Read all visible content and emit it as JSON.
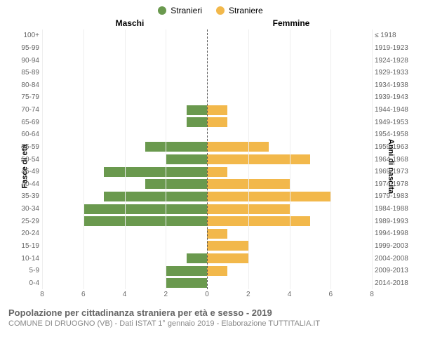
{
  "chart": {
    "type": "population-pyramid",
    "legend": [
      {
        "label": "Stranieri",
        "color": "#6a994e"
      },
      {
        "label": "Straniere",
        "color": "#f2b84b"
      }
    ],
    "column_headers": {
      "left": "Maschi",
      "right": "Femmine"
    },
    "yaxis_left_label": "Fasce di età",
    "yaxis_right_label": "Anni di nascita",
    "xmax": 8,
    "xtick_step": 2,
    "bar_height_ratio": 0.8,
    "left_color": "#6a994e",
    "right_color": "#f2b84b",
    "background_color": "#ffffff",
    "grid_color": "#eeeeee",
    "center_line_color": "#555555",
    "label_fontsize": 10,
    "legend_fontsize": 12,
    "rows": [
      {
        "age": "100+",
        "years": "≤ 1918",
        "m": 0,
        "f": 0
      },
      {
        "age": "95-99",
        "years": "1919-1923",
        "m": 0,
        "f": 0
      },
      {
        "age": "90-94",
        "years": "1924-1928",
        "m": 0,
        "f": 0
      },
      {
        "age": "85-89",
        "years": "1929-1933",
        "m": 0,
        "f": 0
      },
      {
        "age": "80-84",
        "years": "1934-1938",
        "m": 0,
        "f": 0
      },
      {
        "age": "75-79",
        "years": "1939-1943",
        "m": 0,
        "f": 0
      },
      {
        "age": "70-74",
        "years": "1944-1948",
        "m": 1,
        "f": 1
      },
      {
        "age": "65-69",
        "years": "1949-1953",
        "m": 1,
        "f": 1
      },
      {
        "age": "60-64",
        "years": "1954-1958",
        "m": 0,
        "f": 0
      },
      {
        "age": "55-59",
        "years": "1959-1963",
        "m": 3,
        "f": 3
      },
      {
        "age": "50-54",
        "years": "1964-1968",
        "m": 2,
        "f": 5
      },
      {
        "age": "45-49",
        "years": "1969-1973",
        "m": 5,
        "f": 1
      },
      {
        "age": "40-44",
        "years": "1974-1978",
        "m": 3,
        "f": 4
      },
      {
        "age": "35-39",
        "years": "1979-1983",
        "m": 5,
        "f": 6
      },
      {
        "age": "30-34",
        "years": "1984-1988",
        "m": 6,
        "f": 4
      },
      {
        "age": "25-29",
        "years": "1989-1993",
        "m": 6,
        "f": 5
      },
      {
        "age": "20-24",
        "years": "1994-1998",
        "m": 0,
        "f": 1
      },
      {
        "age": "15-19",
        "years": "1999-2003",
        "m": 0,
        "f": 2
      },
      {
        "age": "10-14",
        "years": "2004-2008",
        "m": 1,
        "f": 2
      },
      {
        "age": "5-9",
        "years": "2009-2013",
        "m": 2,
        "f": 1
      },
      {
        "age": "0-4",
        "years": "2014-2018",
        "m": 2,
        "f": 0
      }
    ]
  },
  "caption": {
    "title": "Popolazione per cittadinanza straniera per età e sesso - 2019",
    "subtitle": "COMUNE DI DRUOGNO (VB) - Dati ISTAT 1° gennaio 2019 - Elaborazione TUTTITALIA.IT"
  }
}
